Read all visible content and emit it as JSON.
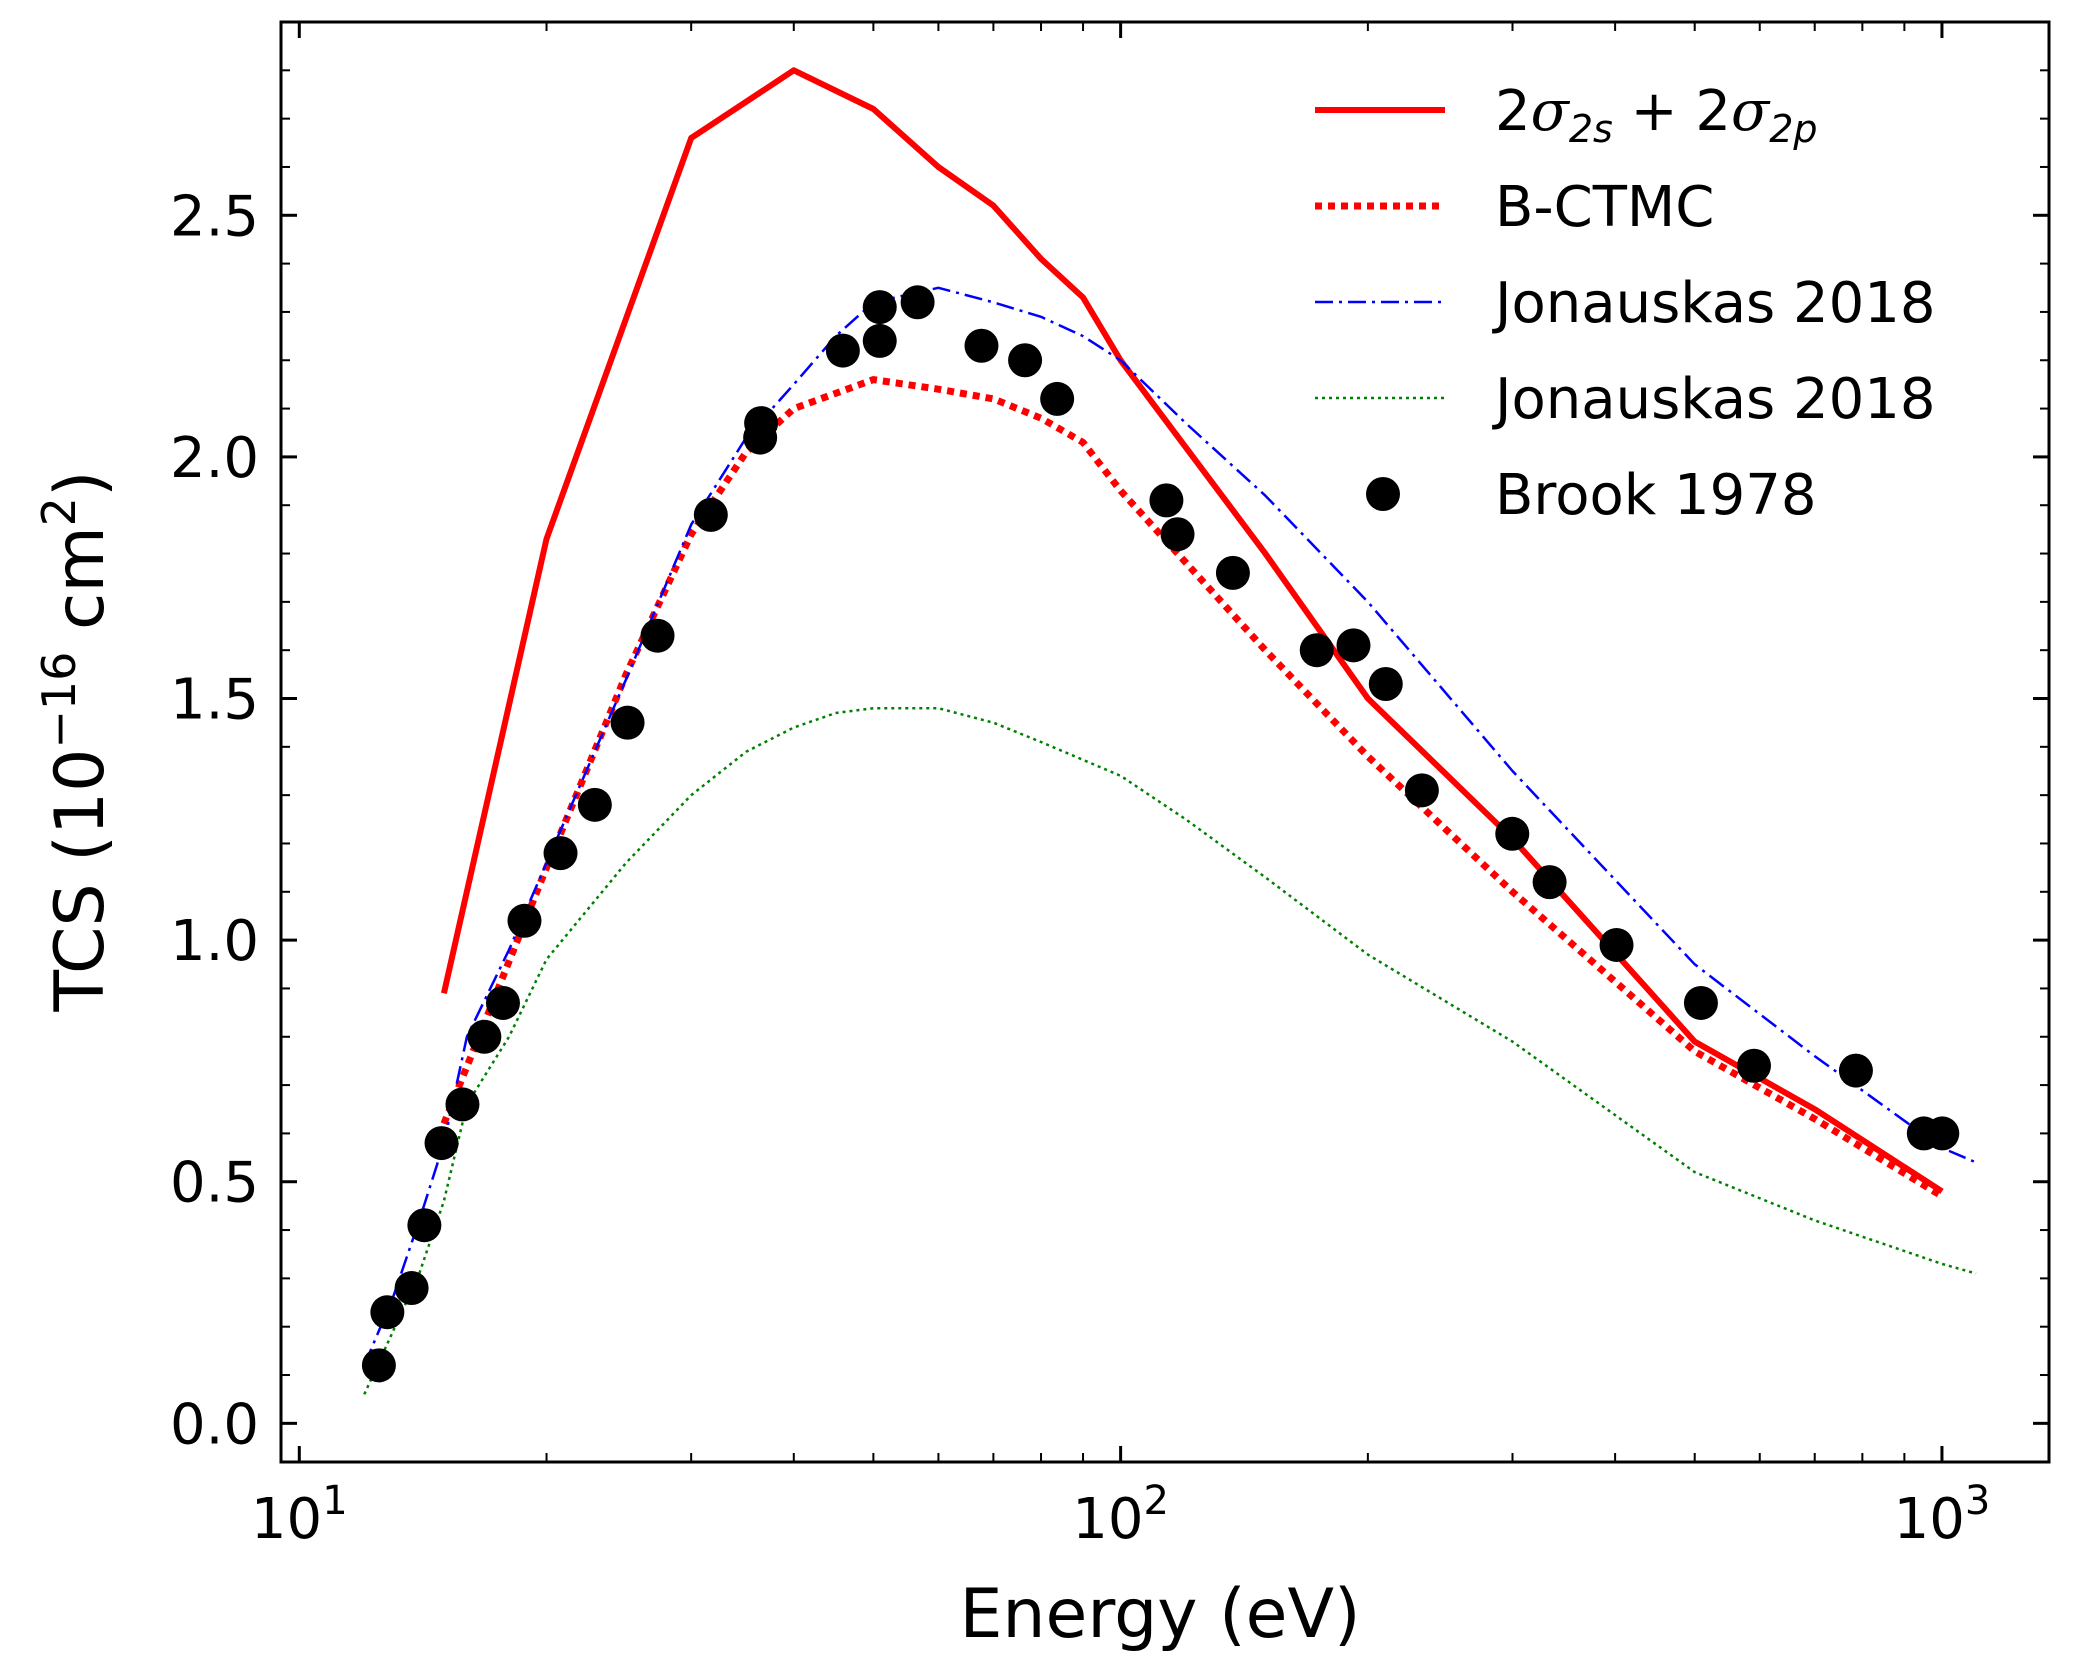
{
  "chart_data": {
    "type": "line",
    "title": "",
    "xlabel": "Energy (eV)",
    "ylabel": {
      "prefix": "TCS (10",
      "exp": "−16",
      "mid": " cm",
      "exp2": "2",
      "suffix": ")"
    },
    "xscale": "log",
    "xlim": [
      9.5,
      1350
    ],
    "ylim": [
      -0.08,
      2.9
    ],
    "xticks": [
      {
        "value": 10,
        "base": "10",
        "exp": "1"
      },
      {
        "value": 100,
        "base": "10",
        "exp": "2"
      },
      {
        "value": 1000,
        "base": "10",
        "exp": "3"
      }
    ],
    "yticks": [
      {
        "value": 0.0,
        "label": "0.0"
      },
      {
        "value": 0.5,
        "label": "0.5"
      },
      {
        "value": 1.0,
        "label": "1.0"
      },
      {
        "value": 1.5,
        "label": "1.5"
      },
      {
        "value": 2.0,
        "label": "2.0"
      },
      {
        "value": 2.5,
        "label": "2.5"
      }
    ],
    "grid": false,
    "legend_position": "top-right",
    "series": [
      {
        "name": "2σ2s + 2σ2p",
        "legend": {
          "parts": [
            "2",
            "σ",
            "2s",
            " + 2",
            "σ",
            "2p"
          ]
        },
        "style": "solid",
        "color": "#ff0000",
        "x": [
          15,
          20,
          30,
          40,
          50,
          60,
          70,
          80,
          90,
          100,
          150,
          200,
          300,
          500,
          700,
          1000
        ],
        "y": [
          0.89,
          1.83,
          2.66,
          2.8,
          2.72,
          2.6,
          2.52,
          2.41,
          2.33,
          2.2,
          1.8,
          1.5,
          1.21,
          0.79,
          0.65,
          0.48
        ]
      },
      {
        "name": "B-CTMC",
        "style": "dotted-thick",
        "color": "#ff0000",
        "x": [
          15,
          17,
          20,
          25,
          30,
          35,
          40,
          50,
          60,
          70,
          80,
          90,
          100,
          150,
          200,
          300,
          500,
          700,
          1000
        ],
        "y": [
          0.62,
          0.85,
          1.15,
          1.55,
          1.84,
          2.01,
          2.1,
          2.16,
          2.14,
          2.12,
          2.08,
          2.03,
          1.93,
          1.6,
          1.38,
          1.1,
          0.77,
          0.63,
          0.47
        ]
      },
      {
        "name": "Jonauskas 2018",
        "style": "dashdot",
        "color": "#0000ff",
        "x": [
          12,
          13,
          14,
          15,
          16,
          18,
          20,
          25,
          30,
          35,
          40,
          45,
          50,
          60,
          70,
          80,
          90,
          100,
          120,
          150,
          200,
          300,
          500,
          700,
          1000,
          1100
        ],
        "y": [
          0.12,
          0.26,
          0.42,
          0.58,
          0.8,
          0.98,
          1.16,
          1.54,
          1.86,
          2.04,
          2.15,
          2.25,
          2.32,
          2.35,
          2.32,
          2.29,
          2.25,
          2.2,
          2.07,
          1.92,
          1.7,
          1.35,
          0.95,
          0.76,
          0.57,
          0.54
        ]
      },
      {
        "name": "Jonauskas 2018",
        "style": "dotted-thin",
        "color": "#008000",
        "x": [
          12,
          13,
          14,
          15,
          16,
          18,
          20,
          25,
          30,
          35,
          40,
          45,
          50,
          55,
          60,
          70,
          80,
          100,
          120,
          150,
          200,
          300,
          500,
          700,
          1000,
          1100
        ],
        "y": [
          0.06,
          0.19,
          0.31,
          0.46,
          0.66,
          0.8,
          0.96,
          1.16,
          1.3,
          1.39,
          1.44,
          1.47,
          1.48,
          1.48,
          1.48,
          1.45,
          1.41,
          1.34,
          1.25,
          1.13,
          0.97,
          0.79,
          0.52,
          0.42,
          0.33,
          0.31
        ]
      },
      {
        "name": "Brook 1978",
        "style": "markers",
        "color": "#000000",
        "x": [
          12.5,
          12.8,
          13.7,
          14.2,
          14.9,
          15.8,
          16.8,
          17.7,
          18.8,
          20.8,
          22.9,
          25.1,
          27.3,
          31.7,
          36.4,
          36.5,
          45.9,
          50.9,
          50.9,
          56.6,
          67.7,
          76.5,
          83.7,
          113.7,
          117.3,
          137.0,
          173.3,
          192.1,
          210.3,
          232.7,
          299.8,
          332.9,
          401.6,
          508.8,
          590.4,
          785.7,
          950.4,
          1001.0
        ],
        "y": [
          0.12,
          0.23,
          0.28,
          0.41,
          0.58,
          0.66,
          0.8,
          0.87,
          1.04,
          1.18,
          1.28,
          1.45,
          1.63,
          1.88,
          2.04,
          2.07,
          2.22,
          2.24,
          2.31,
          2.32,
          2.23,
          2.2,
          2.12,
          1.91,
          1.84,
          1.76,
          1.6,
          1.61,
          1.53,
          1.31,
          1.22,
          1.12,
          0.99,
          0.87,
          0.74,
          0.73,
          0.6,
          0.6
        ]
      }
    ]
  }
}
